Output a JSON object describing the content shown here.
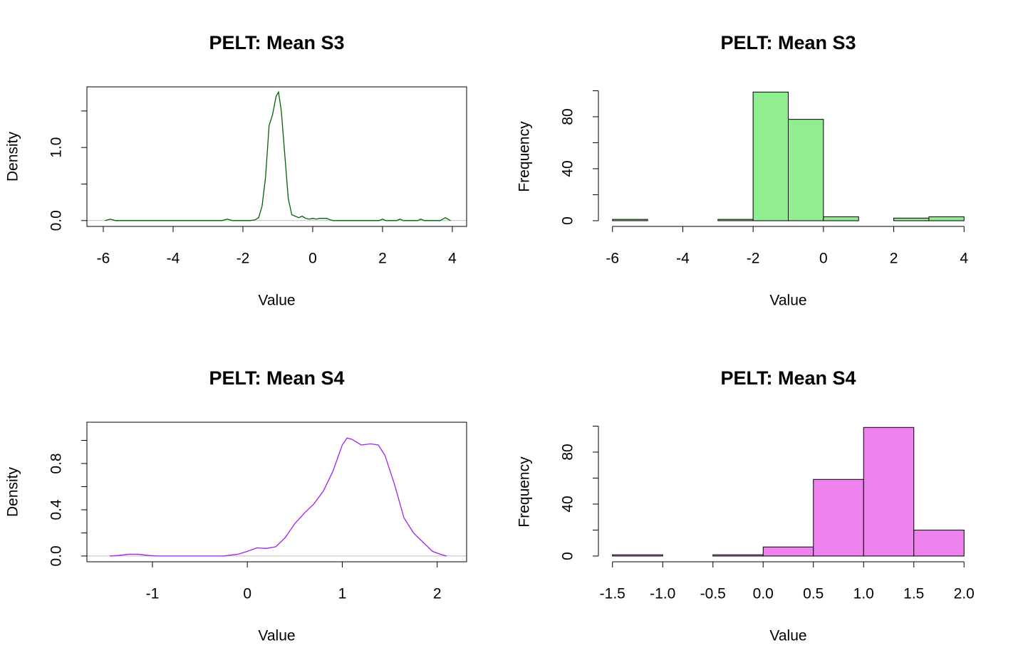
{
  "chart_data": [
    {
      "type": "line",
      "title": "PELT: Mean S3",
      "xlabel": "Value",
      "ylabel": "Density",
      "color": "#006400",
      "zero_line": true,
      "box": true,
      "x": [
        -5.95,
        -5.8,
        -5.65,
        -2.6,
        -2.45,
        -2.3,
        -1.8,
        -1.65,
        -1.55,
        -1.45,
        -1.35,
        -1.25,
        -1.15,
        -1.05,
        -0.98,
        -0.9,
        -0.8,
        -0.7,
        -0.6,
        -0.5,
        -0.4,
        -0.3,
        -0.2,
        -0.1,
        0,
        0.1,
        0.2,
        0.4,
        0.5,
        0.6,
        1.9,
        2.0,
        2.1,
        2.4,
        2.5,
        2.6,
        3.0,
        3.1,
        3.2,
        3.65,
        3.8,
        3.95
      ],
      "values": [
        0,
        0.02,
        0,
        0,
        0.02,
        0,
        0,
        0.01,
        0.04,
        0.2,
        0.6,
        1.3,
        1.45,
        1.7,
        1.76,
        1.5,
        0.9,
        0.3,
        0.08,
        0.06,
        0.04,
        0.06,
        0.03,
        0.02,
        0.03,
        0.02,
        0.03,
        0.03,
        0.01,
        0,
        0,
        0.02,
        0,
        0,
        0.02,
        0,
        0,
        0.02,
        0,
        0,
        0.04,
        0
      ],
      "xlim": [
        -6.47,
        4.41
      ],
      "ylim": [
        -0.08,
        1.83
      ],
      "xticks": [
        -6,
        -4,
        -2,
        0,
        2,
        4
      ],
      "yticks": [
        {
          "value": 0,
          "label": "0.0"
        },
        {
          "value": 0.5
        },
        {
          "value": 1,
          "label": "1.0"
        },
        {
          "value": 1.5
        }
      ]
    },
    {
      "type": "histogram",
      "title": "PELT: Mean S3",
      "xlabel": "Value",
      "ylabel": "Frequency",
      "color": "#90ee90",
      "bins": [
        -6,
        -5,
        -4,
        -3,
        -2,
        -1,
        0,
        1,
        2,
        3,
        4
      ],
      "values": [
        1,
        0,
        0,
        1,
        99,
        78,
        3,
        0,
        2,
        3
      ],
      "xlim": [
        -6.4,
        4.4
      ],
      "ylim": [
        -4.4,
        103
      ],
      "xticks": [
        -6,
        -4,
        -2,
        0,
        2,
        4
      ],
      "yticks": [
        0,
        {
          "value": 20
        },
        40,
        {
          "value": 60
        },
        80,
        {
          "value": 100
        }
      ]
    },
    {
      "type": "line",
      "title": "PELT: Mean S4",
      "xlabel": "Value",
      "ylabel": "Density",
      "color": "#a020f0",
      "zero_line": true,
      "box": true,
      "x": [
        -1.45,
        -1.35,
        -1.25,
        -1.15,
        -1.05,
        -0.95,
        -0.25,
        -0.1,
        0,
        0.1,
        0.2,
        0.3,
        0.4,
        0.5,
        0.6,
        0.7,
        0.8,
        0.9,
        1.0,
        1.05,
        1.1,
        1.2,
        1.3,
        1.38,
        1.45,
        1.55,
        1.65,
        1.75,
        1.85,
        1.95,
        2.05,
        2.1
      ],
      "values": [
        0,
        0.005,
        0.015,
        0.015,
        0.005,
        0,
        0,
        0.015,
        0.04,
        0.07,
        0.065,
        0.08,
        0.16,
        0.28,
        0.37,
        0.45,
        0.56,
        0.73,
        0.96,
        1.02,
        1.01,
        0.96,
        0.97,
        0.96,
        0.87,
        0.62,
        0.33,
        0.2,
        0.12,
        0.04,
        0.01,
        0
      ],
      "xlim": [
        -1.69,
        2.31
      ],
      "ylim": [
        -0.05,
        1.157
      ],
      "xticks": [
        -1,
        0,
        1,
        2
      ],
      "yticks": [
        {
          "value": 0,
          "label": "0.0"
        },
        {
          "value": 0.2
        },
        0.4,
        {
          "value": 0.6
        },
        0.8,
        {
          "value": 1
        }
      ]
    },
    {
      "type": "histogram",
      "title": "PELT: Mean S4",
      "xlabel": "Value",
      "ylabel": "Frequency",
      "color": "#ee82ee",
      "bins": [
        -1.5,
        -1,
        -0.5,
        0,
        0.5,
        1,
        1.5,
        2
      ],
      "values": [
        1,
        0,
        1,
        7,
        59,
        99,
        20
      ],
      "xlim": [
        -1.64,
        2.14
      ],
      "ylim": [
        -4.4,
        103
      ],
      "xticks": [
        {
          "value": -1.5,
          "label": "-1.5"
        },
        {
          "value": -1,
          "label": "-1.0"
        },
        -0.5,
        {
          "value": 0,
          "label": "0.0"
        },
        0.5,
        {
          "value": 1,
          "label": "1.0"
        },
        1.5,
        {
          "value": 2,
          "label": "2.0"
        }
      ],
      "yticks": [
        0,
        {
          "value": 20
        },
        40,
        {
          "value": 60
        },
        80,
        {
          "value": 100
        }
      ]
    }
  ]
}
